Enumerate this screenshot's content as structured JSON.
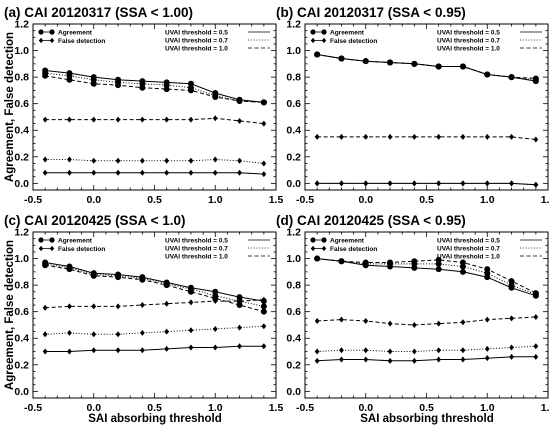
{
  "xlabel": "SAI absorbing threshold",
  "ylabel": "Agreement, False detection",
  "legend_markers": {
    "agreement": "Agreement",
    "false_detection": "False detection"
  },
  "legend_lines": [
    "UVAI threshold = 0.5",
    "UVAI threshold = 0.7",
    "UVAI threshold = 1.0"
  ],
  "chart_data": [
    {
      "type": "line",
      "title": "(a) CAI 20120317  (SSA < 1.00)",
      "xlim": [
        -0.5,
        1.5
      ],
      "ylim": [
        -0.05,
        1.2
      ],
      "xticks": [
        "-0.5",
        "0.0",
        "0.5",
        "1.0",
        "1.5"
      ],
      "yticks": [
        "0.0",
        "0.2",
        "0.4",
        "0.6",
        "0.8",
        "1.0",
        "1.2"
      ],
      "x": [
        -0.4,
        -0.2,
        0.0,
        0.2,
        0.4,
        0.6,
        0.8,
        1.0,
        1.2,
        1.4
      ],
      "series": [
        {
          "name": "Agreement, UVAI threshold = 0.5",
          "marker": "circle",
          "line": "solid",
          "values": [
            0.85,
            0.83,
            0.8,
            0.78,
            0.77,
            0.76,
            0.75,
            0.68,
            0.63,
            0.61
          ]
        },
        {
          "name": "Agreement, UVAI threshold = 0.7",
          "marker": "circle",
          "line": "dotted",
          "values": [
            0.83,
            0.81,
            0.78,
            0.76,
            0.75,
            0.74,
            0.72,
            0.66,
            0.62,
            0.61
          ]
        },
        {
          "name": "Agreement, UVAI threshold = 1.0",
          "marker": "circle",
          "line": "dashed",
          "values": [
            0.81,
            0.78,
            0.75,
            0.74,
            0.72,
            0.71,
            0.7,
            0.65,
            0.62,
            0.61
          ]
        },
        {
          "name": "False detection, UVAI threshold = 0.5",
          "marker": "diamond",
          "line": "solid",
          "values": [
            0.08,
            0.08,
            0.08,
            0.08,
            0.08,
            0.08,
            0.08,
            0.08,
            0.08,
            0.07
          ]
        },
        {
          "name": "False detection, UVAI threshold = 0.7",
          "marker": "diamond",
          "line": "dotted",
          "values": [
            0.18,
            0.18,
            0.17,
            0.17,
            0.17,
            0.17,
            0.17,
            0.18,
            0.17,
            0.15
          ]
        },
        {
          "name": "False detection, UVAI threshold = 1.0",
          "marker": "diamond",
          "line": "dashed",
          "values": [
            0.48,
            0.48,
            0.48,
            0.48,
            0.48,
            0.48,
            0.48,
            0.49,
            0.47,
            0.45
          ]
        }
      ]
    },
    {
      "type": "line",
      "title": "(b) CAI 20120317  (SSA < 0.95)",
      "xlim": [
        -0.5,
        1.5
      ],
      "ylim": [
        -0.05,
        1.2
      ],
      "xticks": [
        "-0.5",
        "0.0",
        "0.5",
        "1.0",
        "1.5"
      ],
      "yticks": [
        "0.0",
        "0.2",
        "0.4",
        "0.6",
        "0.8",
        "1.0",
        "1.2"
      ],
      "x": [
        -0.4,
        -0.2,
        0.0,
        0.2,
        0.4,
        0.6,
        0.8,
        1.0,
        1.2,
        1.4
      ],
      "series": [
        {
          "name": "Agreement, UVAI threshold = 0.5",
          "marker": "circle",
          "line": "solid",
          "values": [
            0.97,
            0.94,
            0.92,
            0.91,
            0.9,
            0.88,
            0.88,
            0.82,
            0.8,
            0.77
          ]
        },
        {
          "name": "Agreement, UVAI threshold = 0.7",
          "marker": "circle",
          "line": "dotted",
          "values": [
            0.97,
            0.94,
            0.92,
            0.91,
            0.9,
            0.88,
            0.88,
            0.82,
            0.8,
            0.78
          ]
        },
        {
          "name": "Agreement, UVAI threshold = 1.0",
          "marker": "circle",
          "line": "dashed",
          "values": [
            0.97,
            0.94,
            0.92,
            0.91,
            0.9,
            0.88,
            0.88,
            0.82,
            0.8,
            0.79
          ]
        },
        {
          "name": "False detection, UVAI threshold = 0.5",
          "marker": "diamond",
          "line": "solid",
          "values": [
            0.0,
            0.0,
            0.0,
            0.0,
            0.0,
            0.0,
            0.0,
            0.0,
            0.0,
            -0.01
          ]
        },
        {
          "name": "False detection, UVAI threshold = 0.7",
          "marker": "diamond",
          "line": "dotted",
          "values": [
            0.0,
            0.0,
            0.0,
            0.0,
            0.0,
            0.0,
            0.0,
            0.0,
            0.0,
            -0.01
          ]
        },
        {
          "name": "False detection, UVAI threshold = 1.0",
          "marker": "diamond",
          "line": "dashed",
          "values": [
            0.35,
            0.35,
            0.35,
            0.35,
            0.35,
            0.35,
            0.35,
            0.35,
            0.35,
            0.33
          ]
        }
      ]
    },
    {
      "type": "line",
      "title": "(c) CAI 20120425  (SSA < 1.0)",
      "xlim": [
        -0.5,
        1.5
      ],
      "ylim": [
        -0.05,
        1.2
      ],
      "xticks": [
        "-0.5",
        "0.0",
        "0.5",
        "1.0",
        "1.5"
      ],
      "yticks": [
        "0.0",
        "0.2",
        "0.4",
        "0.6",
        "0.8",
        "1.0",
        "1.2"
      ],
      "x": [
        -0.4,
        -0.2,
        0.0,
        0.2,
        0.4,
        0.6,
        0.8,
        1.0,
        1.2,
        1.4
      ],
      "series": [
        {
          "name": "Agreement, UVAI threshold = 0.5",
          "marker": "circle",
          "line": "solid",
          "values": [
            0.97,
            0.94,
            0.89,
            0.88,
            0.86,
            0.82,
            0.78,
            0.75,
            0.71,
            0.68
          ]
        },
        {
          "name": "Agreement, UVAI threshold = 0.7",
          "marker": "circle",
          "line": "dotted",
          "values": [
            0.96,
            0.93,
            0.88,
            0.87,
            0.85,
            0.81,
            0.77,
            0.72,
            0.68,
            0.64
          ]
        },
        {
          "name": "Agreement, UVAI threshold = 1.0",
          "marker": "circle",
          "line": "dashed",
          "values": [
            0.95,
            0.92,
            0.87,
            0.86,
            0.84,
            0.8,
            0.75,
            0.7,
            0.65,
            0.6
          ]
        },
        {
          "name": "False detection, UVAI threshold = 0.5",
          "marker": "diamond",
          "line": "solid",
          "values": [
            0.3,
            0.3,
            0.31,
            0.31,
            0.31,
            0.32,
            0.33,
            0.33,
            0.34,
            0.34
          ]
        },
        {
          "name": "False detection, UVAI threshold = 0.7",
          "marker": "diamond",
          "line": "dotted",
          "values": [
            0.43,
            0.44,
            0.43,
            0.43,
            0.44,
            0.45,
            0.46,
            0.47,
            0.48,
            0.49
          ]
        },
        {
          "name": "False detection, UVAI threshold = 1.0",
          "marker": "diamond",
          "line": "dashed",
          "values": [
            0.63,
            0.64,
            0.64,
            0.64,
            0.65,
            0.66,
            0.67,
            0.68,
            0.68,
            0.69
          ]
        }
      ]
    },
    {
      "type": "line",
      "title": "(d) CAI 20120425  (SSA < 0.95)",
      "xlim": [
        -0.5,
        1.5
      ],
      "ylim": [
        -0.05,
        1.2
      ],
      "xticks": [
        "-0.5",
        "0.0",
        "0.5",
        "1.0",
        "1.5"
      ],
      "yticks": [
        "0.0",
        "0.2",
        "0.4",
        "0.6",
        "0.8",
        "1.0",
        "1.2"
      ],
      "x": [
        -0.4,
        -0.2,
        0.0,
        0.2,
        0.4,
        0.6,
        0.8,
        1.0,
        1.2,
        1.4
      ],
      "series": [
        {
          "name": "Agreement, UVAI threshold = 0.5",
          "marker": "circle",
          "line": "solid",
          "values": [
            1.0,
            0.98,
            0.95,
            0.94,
            0.93,
            0.92,
            0.9,
            0.86,
            0.78,
            0.72
          ]
        },
        {
          "name": "Agreement, UVAI threshold = 0.7",
          "marker": "circle",
          "line": "dotted",
          "values": [
            1.0,
            0.98,
            0.96,
            0.96,
            0.96,
            0.96,
            0.94,
            0.89,
            0.8,
            0.73
          ]
        },
        {
          "name": "Agreement, UVAI threshold = 1.0",
          "marker": "circle",
          "line": "dashed",
          "values": [
            1.0,
            0.98,
            0.97,
            0.97,
            0.98,
            0.99,
            0.97,
            0.92,
            0.83,
            0.74
          ]
        },
        {
          "name": "False detection, UVAI threshold = 0.5",
          "marker": "diamond",
          "line": "solid",
          "values": [
            0.23,
            0.24,
            0.24,
            0.23,
            0.23,
            0.24,
            0.24,
            0.25,
            0.26,
            0.26
          ]
        },
        {
          "name": "False detection, UVAI threshold = 0.7",
          "marker": "diamond",
          "line": "dotted",
          "values": [
            0.3,
            0.31,
            0.31,
            0.3,
            0.3,
            0.31,
            0.31,
            0.32,
            0.33,
            0.34
          ]
        },
        {
          "name": "False detection, UVAI threshold = 1.0",
          "marker": "diamond",
          "line": "dashed",
          "values": [
            0.53,
            0.54,
            0.53,
            0.51,
            0.5,
            0.51,
            0.52,
            0.54,
            0.55,
            0.56
          ]
        }
      ]
    }
  ]
}
